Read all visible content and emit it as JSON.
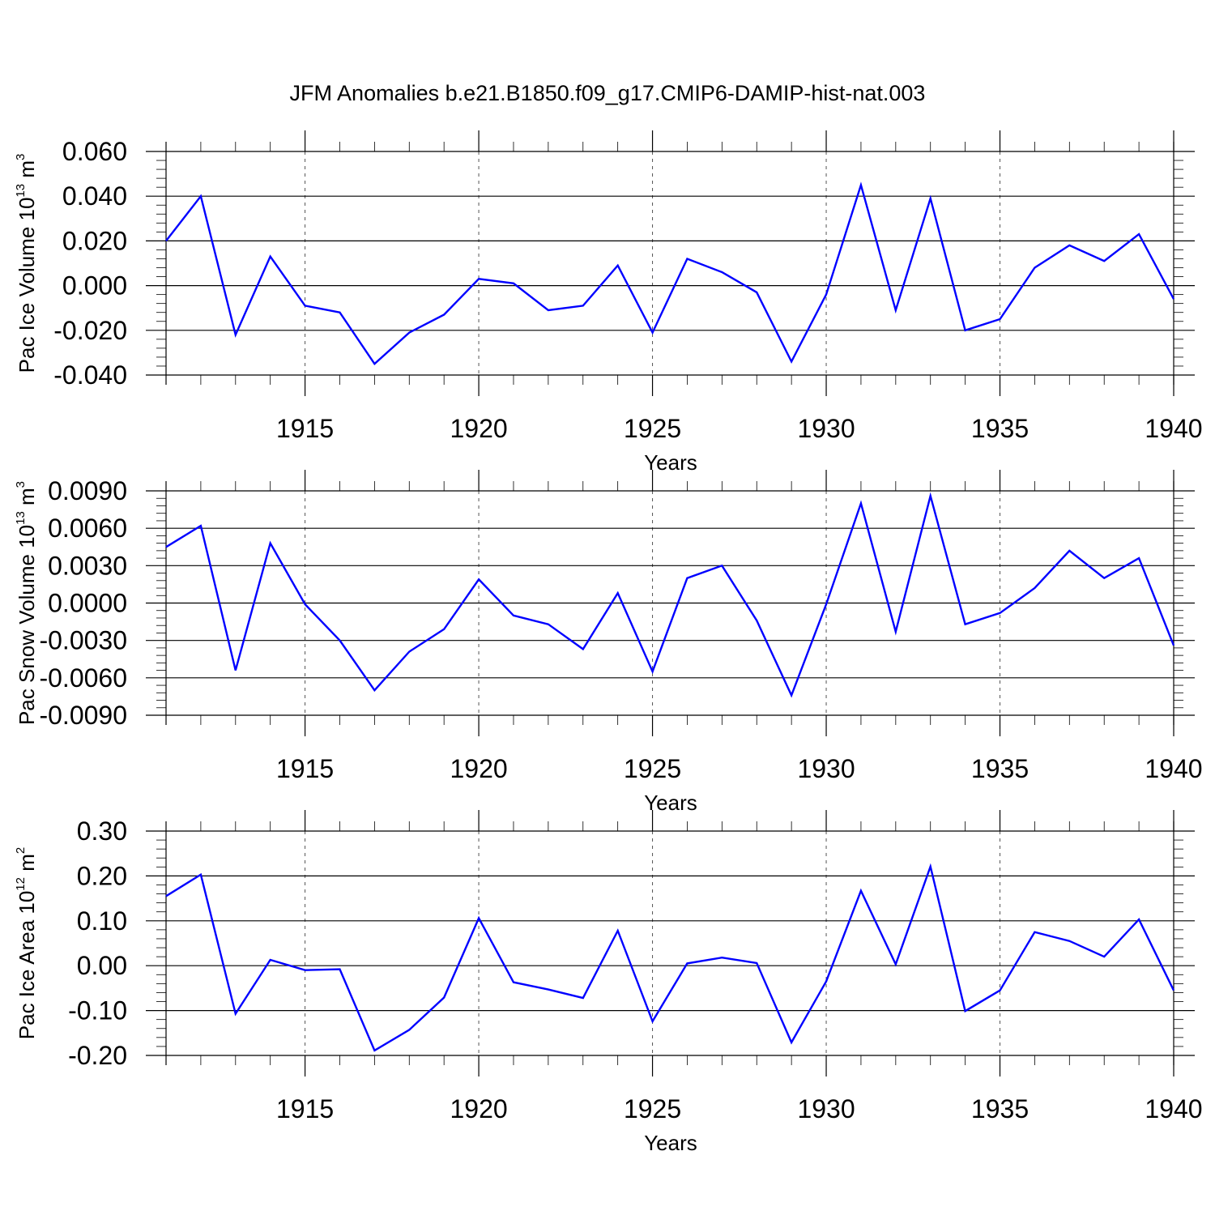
{
  "title": "JFM Anomalies b.e21.B1850.f09_g17.CMIP6-DAMIP-hist-nat.003",
  "chart_data": [
    {
      "type": "line",
      "xlabel": "Years",
      "ylabel": {
        "text": "Pac Ice Volume 10",
        "sup": "13",
        "unit": " m",
        "unit_sup": "3"
      },
      "xlim": [
        1911,
        1940
      ],
      "ylim": [
        -0.04,
        0.06
      ],
      "x_ticks": [
        1915,
        1920,
        1925,
        1930,
        1935,
        1940
      ],
      "y_ticks": [
        {
          "value": 0.06,
          "label": "0.060"
        },
        {
          "value": 0.04,
          "label": "0.040"
        },
        {
          "value": 0.02,
          "label": "0.020"
        },
        {
          "value": 0.0,
          "label": "0.000"
        },
        {
          "value": -0.02,
          "label": "-0.020"
        },
        {
          "value": -0.04,
          "label": "-0.040"
        }
      ],
      "x": [
        1911,
        1912,
        1913,
        1914,
        1915,
        1916,
        1917,
        1918,
        1919,
        1920,
        1921,
        1922,
        1923,
        1924,
        1925,
        1926,
        1927,
        1928,
        1929,
        1930,
        1931,
        1932,
        1933,
        1934,
        1935,
        1936,
        1937,
        1938,
        1939,
        1940
      ],
      "series": [
        {
          "name": "Pac Ice Volume",
          "color": "#0000ff",
          "values": [
            0.02,
            0.04,
            -0.022,
            0.013,
            -0.009,
            -0.012,
            -0.035,
            -0.021,
            -0.013,
            0.003,
            0.001,
            -0.011,
            -0.009,
            0.009,
            -0.021,
            0.012,
            0.006,
            -0.003,
            -0.034,
            -0.004,
            0.045,
            -0.011,
            0.039,
            -0.02,
            -0.015,
            0.008,
            0.018,
            0.011,
            0.023,
            -0.006
          ]
        }
      ]
    },
    {
      "type": "line",
      "xlabel": "Years",
      "ylabel": {
        "text": "Pac Snow Volume 10",
        "sup": "13",
        "unit": " m",
        "unit_sup": "3"
      },
      "xlim": [
        1911,
        1940
      ],
      "ylim": [
        -0.009,
        0.009
      ],
      "x_ticks": [
        1915,
        1920,
        1925,
        1930,
        1935,
        1940
      ],
      "y_ticks": [
        {
          "value": 0.009,
          "label": "0.0090"
        },
        {
          "value": 0.006,
          "label": "0.0060"
        },
        {
          "value": 0.003,
          "label": "0.0030"
        },
        {
          "value": 0.0,
          "label": "0.0000"
        },
        {
          "value": -0.003,
          "label": "-0.0030"
        },
        {
          "value": -0.006,
          "label": "-0.0060"
        },
        {
          "value": -0.009,
          "label": "-0.0090"
        }
      ],
      "x": [
        1911,
        1912,
        1913,
        1914,
        1915,
        1916,
        1917,
        1918,
        1919,
        1920,
        1921,
        1922,
        1923,
        1924,
        1925,
        1926,
        1927,
        1928,
        1929,
        1930,
        1931,
        1932,
        1933,
        1934,
        1935,
        1936,
        1937,
        1938,
        1939,
        1940
      ],
      "series": [
        {
          "name": "Pac Snow Volume",
          "color": "#0000ff",
          "values": [
            0.0045,
            0.0062,
            -0.0054,
            0.0048,
            -0.0001,
            -0.003,
            -0.007,
            -0.0039,
            -0.0021,
            0.0019,
            -0.001,
            -0.0017,
            -0.0037,
            0.0008,
            -0.0055,
            0.002,
            0.003,
            -0.0014,
            -0.0074,
            -0.0001,
            0.008,
            -0.0023,
            0.0086,
            -0.0017,
            -0.0008,
            0.0012,
            0.0042,
            0.002,
            0.0036,
            -0.0034
          ]
        }
      ]
    },
    {
      "type": "line",
      "xlabel": "Years",
      "ylabel": {
        "text": "Pac Ice Area 10",
        "sup": "12",
        "unit": " m",
        "unit_sup": "2"
      },
      "xlim": [
        1911,
        1940
      ],
      "ylim": [
        -0.2,
        0.3
      ],
      "x_ticks": [
        1915,
        1920,
        1925,
        1930,
        1935,
        1940
      ],
      "y_ticks": [
        {
          "value": 0.3,
          "label": "0.30"
        },
        {
          "value": 0.2,
          "label": "0.20"
        },
        {
          "value": 0.1,
          "label": "0.10"
        },
        {
          "value": 0.0,
          "label": "0.00"
        },
        {
          "value": -0.1,
          "label": "-0.10"
        },
        {
          "value": -0.2,
          "label": "-0.20"
        }
      ],
      "x": [
        1911,
        1912,
        1913,
        1914,
        1915,
        1916,
        1917,
        1918,
        1919,
        1920,
        1921,
        1922,
        1923,
        1924,
        1925,
        1926,
        1927,
        1928,
        1929,
        1930,
        1931,
        1932,
        1933,
        1934,
        1935,
        1936,
        1937,
        1938,
        1939,
        1940
      ],
      "series": [
        {
          "name": "Pac Ice Area",
          "color": "#0000ff",
          "values": [
            0.155,
            0.203,
            -0.107,
            0.013,
            -0.01,
            -0.008,
            -0.189,
            -0.143,
            -0.071,
            0.106,
            -0.037,
            -0.053,
            -0.072,
            0.078,
            -0.124,
            0.005,
            0.018,
            0.006,
            -0.171,
            -0.035,
            0.167,
            0.003,
            0.221,
            -0.101,
            -0.055,
            0.075,
            0.055,
            0.02,
            0.103,
            -0.055
          ]
        }
      ]
    }
  ]
}
